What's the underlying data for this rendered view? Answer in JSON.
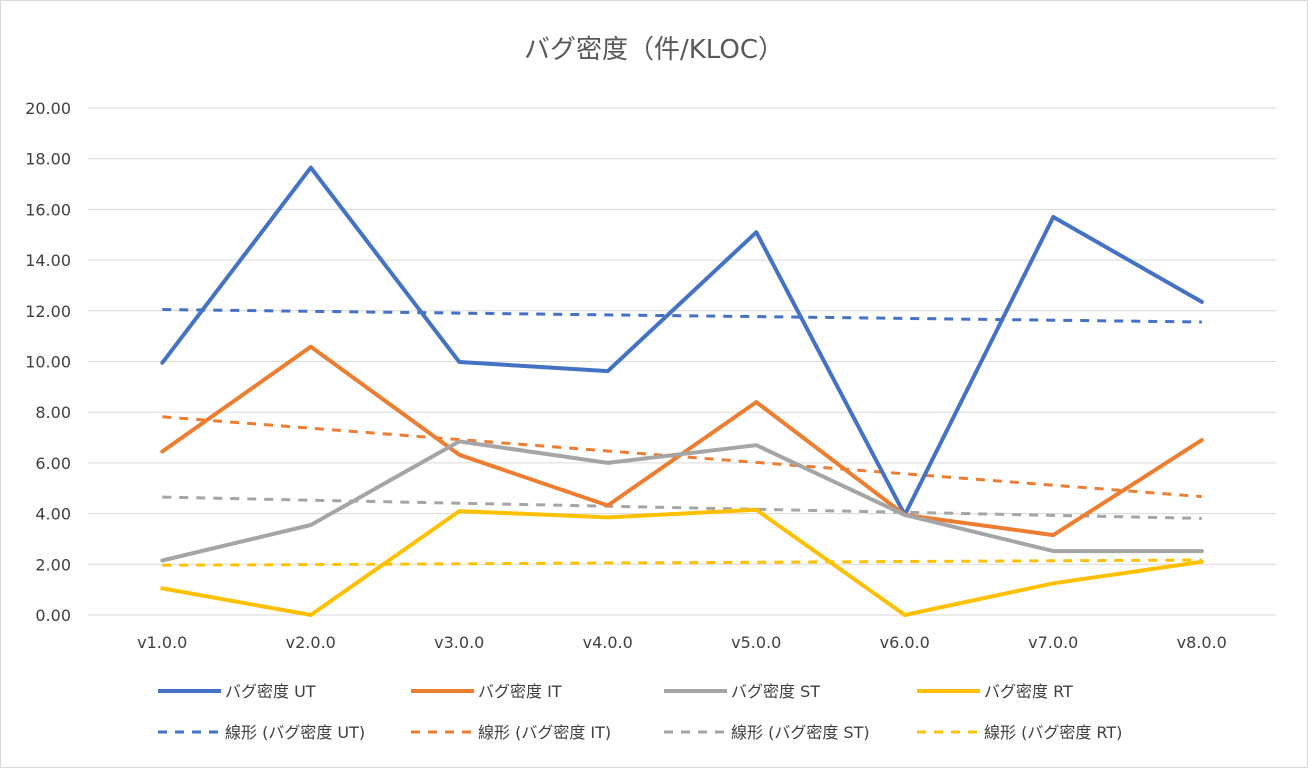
{
  "chart_data": {
    "type": "line",
    "title": "バグ密度（件/KLOC）",
    "xlabel": "",
    "ylabel": "",
    "categories": [
      "v1.0.0",
      "v2.0.0",
      "v3.0.0",
      "v4.0.0",
      "v5.0.0",
      "v6.0.0",
      "v7.0.0",
      "v8.0.0"
    ],
    "ylim": [
      0,
      20
    ],
    "yticks": [
      "0.00",
      "2.00",
      "4.00",
      "6.00",
      "8.00",
      "10.00",
      "12.00",
      "14.00",
      "16.00",
      "18.00",
      "20.00"
    ],
    "grid": true,
    "legend_position": "bottom",
    "series": [
      {
        "name": "バグ密度 UT",
        "style": "solid",
        "color": "#4472C4",
        "values": [
          9.95,
          17.65,
          9.98,
          9.62,
          15.1,
          3.95,
          15.7,
          12.35
        ]
      },
      {
        "name": "バグ密度 IT",
        "style": "solid",
        "color": "#ED7D31",
        "values": [
          6.45,
          10.58,
          6.32,
          4.32,
          8.4,
          3.95,
          3.15,
          6.9
        ]
      },
      {
        "name": "バグ密度 ST",
        "style": "solid",
        "color": "#A5A5A5",
        "values": [
          2.15,
          3.55,
          6.85,
          6.0,
          6.7,
          3.95,
          2.52,
          2.52
        ]
      },
      {
        "name": "バグ密度 RT",
        "style": "solid",
        "color": "#FFC000",
        "values": [
          1.05,
          0.0,
          4.1,
          3.85,
          4.15,
          0.0,
          1.25,
          2.1
        ]
      },
      {
        "name": "線形 (バグ密度 UT)",
        "style": "dashed",
        "color": "#4472C4",
        "values": [
          12.05,
          11.98,
          11.91,
          11.84,
          11.77,
          11.7,
          11.63,
          11.56
        ]
      },
      {
        "name": "線形 (バグ密度 IT)",
        "style": "dashed",
        "color": "#ED7D31",
        "values": [
          7.82,
          7.37,
          6.92,
          6.47,
          6.02,
          5.57,
          5.12,
          4.67
        ]
      },
      {
        "name": "線形 (バグ密度 ST)",
        "style": "dashed",
        "color": "#A5A5A5",
        "values": [
          4.65,
          4.53,
          4.41,
          4.29,
          4.17,
          4.05,
          3.93,
          3.81
        ]
      },
      {
        "name": "線形 (バグ密度 RT)",
        "style": "dashed",
        "color": "#FFC000",
        "values": [
          1.96,
          1.99,
          2.02,
          2.05,
          2.08,
          2.11,
          2.14,
          2.17
        ]
      }
    ]
  }
}
